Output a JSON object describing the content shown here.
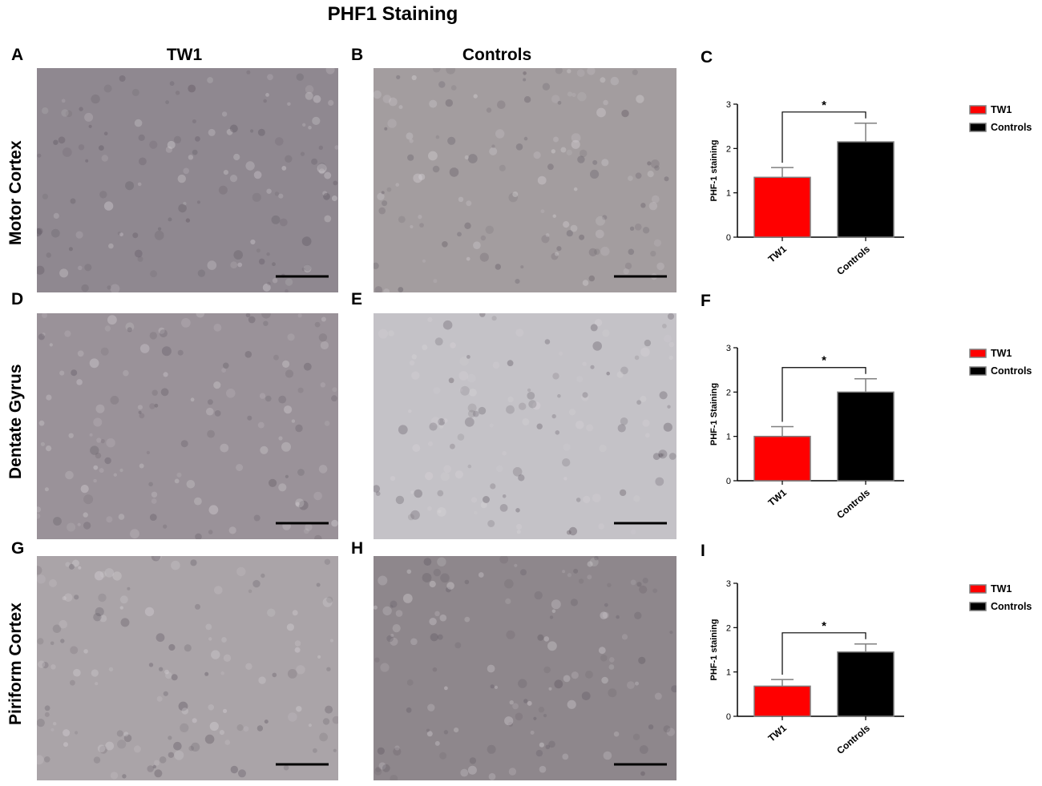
{
  "figure": {
    "title": "PHF1 Staining",
    "column_headers": [
      "TW1",
      "Controls"
    ],
    "row_labels": [
      "Motor Cortex",
      "Dentate Gyrus",
      "Piriform Cortex"
    ],
    "panel_letters": [
      "A",
      "B",
      "C",
      "D",
      "E",
      "F",
      "G",
      "H",
      "I"
    ]
  },
  "micrographs": [
    {
      "panel": "A",
      "region": "Motor Cortex",
      "group": "TW1",
      "tone": "#8f8890"
    },
    {
      "panel": "B",
      "region": "Motor Cortex",
      "group": "Controls",
      "tone": "#a39d9f"
    },
    {
      "panel": "D",
      "region": "Dentate Gyrus",
      "group": "TW1",
      "tone": "#9a9299"
    },
    {
      "panel": "E",
      "region": "Dentate Gyrus",
      "group": "Controls",
      "tone": "#c4c2c7"
    },
    {
      "panel": "G",
      "region": "Piriform Cortex",
      "group": "TW1",
      "tone": "#aaa4a8"
    },
    {
      "panel": "H",
      "region": "Piriform Cortex",
      "group": "Controls",
      "tone": "#8e878c"
    }
  ],
  "chart_data": [
    {
      "panel": "C",
      "type": "bar",
      "categories": [
        "TW1",
        "Controls"
      ],
      "values": [
        1.35,
        2.15
      ],
      "errors": [
        0.22,
        0.42
      ],
      "ylabel": "PHF-1 staining",
      "ylim": [
        0,
        3
      ],
      "yticks": [
        0,
        1,
        2,
        3
      ],
      "colors": [
        "#ff0000",
        "#000000"
      ],
      "legend": [
        "TW1",
        "Controls"
      ],
      "legend_position": "right",
      "significance": "*",
      "grid": false
    },
    {
      "panel": "F",
      "type": "bar",
      "categories": [
        "TW1",
        "Controls"
      ],
      "values": [
        1.0,
        2.0
      ],
      "errors": [
        0.22,
        0.3
      ],
      "ylabel": "PHF-1 Staining",
      "ylim": [
        0,
        3
      ],
      "yticks": [
        0,
        1,
        2,
        3
      ],
      "colors": [
        "#ff0000",
        "#000000"
      ],
      "legend": [
        "TW1",
        "Controls"
      ],
      "legend_position": "right",
      "significance": "*",
      "grid": false
    },
    {
      "panel": "I",
      "type": "bar",
      "categories": [
        "TW1",
        "Controls"
      ],
      "values": [
        0.68,
        1.45
      ],
      "errors": [
        0.15,
        0.18
      ],
      "ylabel": "PHF-1 staining",
      "ylim": [
        0,
        3
      ],
      "yticks": [
        0,
        1,
        2,
        3
      ],
      "colors": [
        "#ff0000",
        "#000000"
      ],
      "legend": [
        "TW1",
        "Controls"
      ],
      "legend_position": "right",
      "significance": "*",
      "grid": false
    }
  ]
}
